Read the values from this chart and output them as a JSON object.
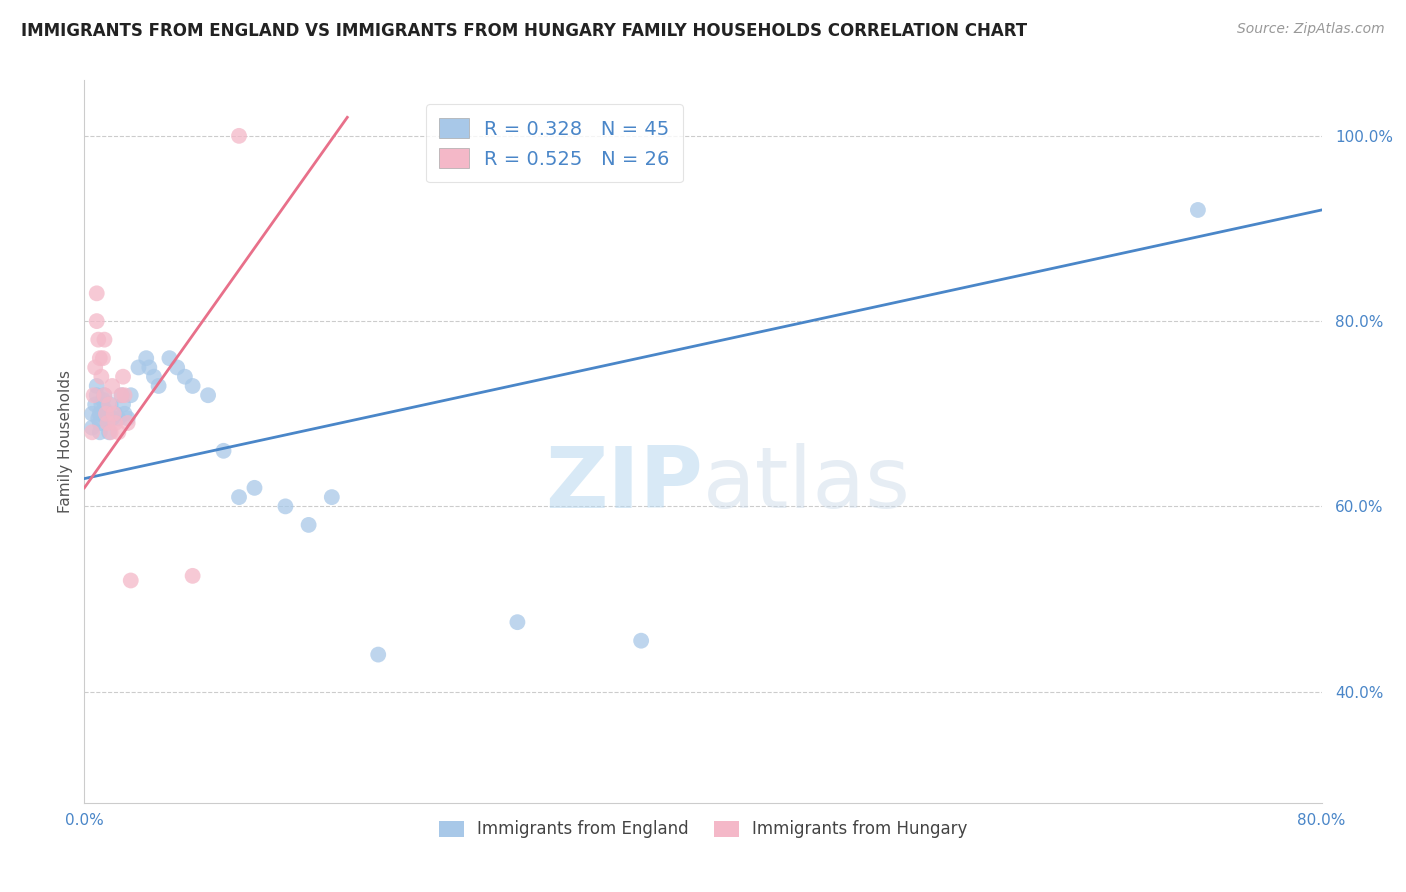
{
  "title": "IMMIGRANTS FROM ENGLAND VS IMMIGRANTS FROM HUNGARY FAMILY HOUSEHOLDS CORRELATION CHART",
  "source": "Source: ZipAtlas.com",
  "ylabel": "Family Households",
  "xlim": [
    0.0,
    0.8
  ],
  "ylim": [
    0.28,
    1.06
  ],
  "xticks": [
    0.0,
    0.1,
    0.2,
    0.3,
    0.4,
    0.5,
    0.6,
    0.7,
    0.8
  ],
  "xticklabels": [
    "0.0%",
    "",
    "",
    "",
    "",
    "",
    "",
    "",
    "80.0%"
  ],
  "ytick_positions": [
    0.4,
    0.6,
    0.8,
    1.0
  ],
  "yticklabels": [
    "40.0%",
    "60.0%",
    "80.0%",
    "100.0%"
  ],
  "R_england": 0.328,
  "N_england": 45,
  "R_hungary": 0.525,
  "N_hungary": 26,
  "england_color": "#a8c8e8",
  "hungary_color": "#f4b8c8",
  "england_line_color": "#4a86c8",
  "hungary_line_color": "#e8708a",
  "england_x": [
    0.005,
    0.005,
    0.007,
    0.008,
    0.008,
    0.009,
    0.01,
    0.01,
    0.01,
    0.011,
    0.012,
    0.013,
    0.013,
    0.014,
    0.015,
    0.016,
    0.017,
    0.018,
    0.02,
    0.022,
    0.024,
    0.025,
    0.026,
    0.028,
    0.03,
    0.035,
    0.04,
    0.042,
    0.045,
    0.048,
    0.055,
    0.06,
    0.065,
    0.07,
    0.08,
    0.09,
    0.1,
    0.11,
    0.13,
    0.145,
    0.16,
    0.19,
    0.28,
    0.36,
    0.72
  ],
  "england_y": [
    0.685,
    0.7,
    0.71,
    0.72,
    0.73,
    0.695,
    0.68,
    0.69,
    0.7,
    0.71,
    0.715,
    0.72,
    0.705,
    0.695,
    0.7,
    0.68,
    0.71,
    0.695,
    0.7,
    0.695,
    0.72,
    0.71,
    0.7,
    0.695,
    0.72,
    0.75,
    0.76,
    0.75,
    0.74,
    0.73,
    0.76,
    0.75,
    0.74,
    0.73,
    0.72,
    0.66,
    0.61,
    0.62,
    0.6,
    0.58,
    0.61,
    0.44,
    0.475,
    0.455,
    0.92
  ],
  "hungary_x": [
    0.005,
    0.006,
    0.007,
    0.008,
    0.008,
    0.009,
    0.01,
    0.011,
    0.012,
    0.013,
    0.013,
    0.014,
    0.015,
    0.016,
    0.017,
    0.018,
    0.019,
    0.02,
    0.022,
    0.024,
    0.025,
    0.026,
    0.028,
    0.03,
    0.07,
    0.1
  ],
  "hungary_y": [
    0.68,
    0.72,
    0.75,
    0.8,
    0.83,
    0.78,
    0.76,
    0.74,
    0.76,
    0.78,
    0.72,
    0.7,
    0.69,
    0.71,
    0.68,
    0.73,
    0.7,
    0.69,
    0.68,
    0.72,
    0.74,
    0.72,
    0.69,
    0.52,
    0.525,
    1.0
  ],
  "eng_line_x": [
    0.0,
    0.8
  ],
  "eng_line_y": [
    0.63,
    0.92
  ],
  "hun_line_x": [
    0.0,
    0.17
  ],
  "hun_line_y": [
    0.62,
    1.02
  ]
}
